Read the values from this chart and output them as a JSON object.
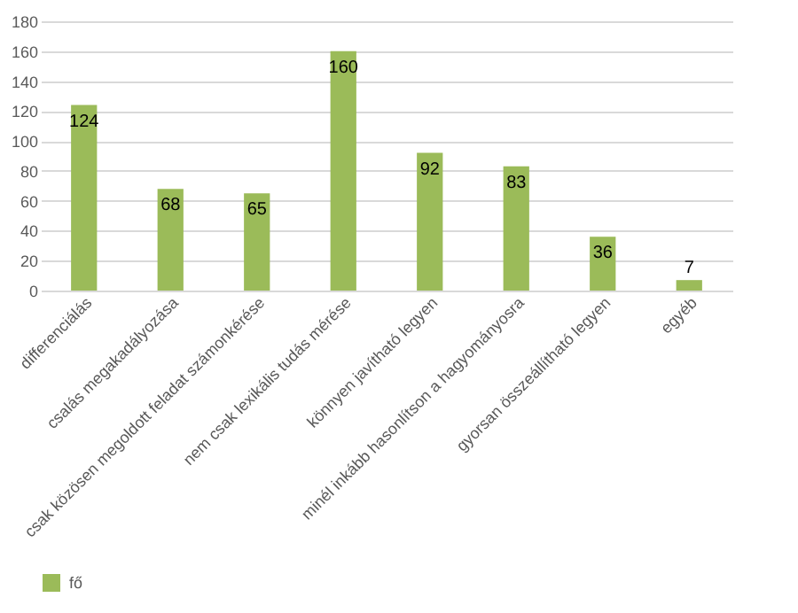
{
  "chart_data": {
    "type": "bar",
    "categories": [
      "differenciálás",
      "csalás megakadályozása",
      "csak közösen megoldott feladat számonkérése",
      "nem csak lexikális tudás mérése",
      "könnyen javítható legyen",
      "minél inkább hasonlítson a hagyományosra",
      "gyorsan összeállítható legyen",
      "egyéb"
    ],
    "series": [
      {
        "name": "fő",
        "color": "#9bbb59",
        "values": [
          124,
          68,
          65,
          160,
          92,
          83,
          36,
          7
        ]
      }
    ],
    "ylim": [
      0,
      180
    ],
    "yticks": [
      0,
      20,
      40,
      60,
      80,
      100,
      120,
      140,
      160,
      180
    ],
    "grid": "y",
    "legend": "bottom",
    "data_labels": true
  }
}
